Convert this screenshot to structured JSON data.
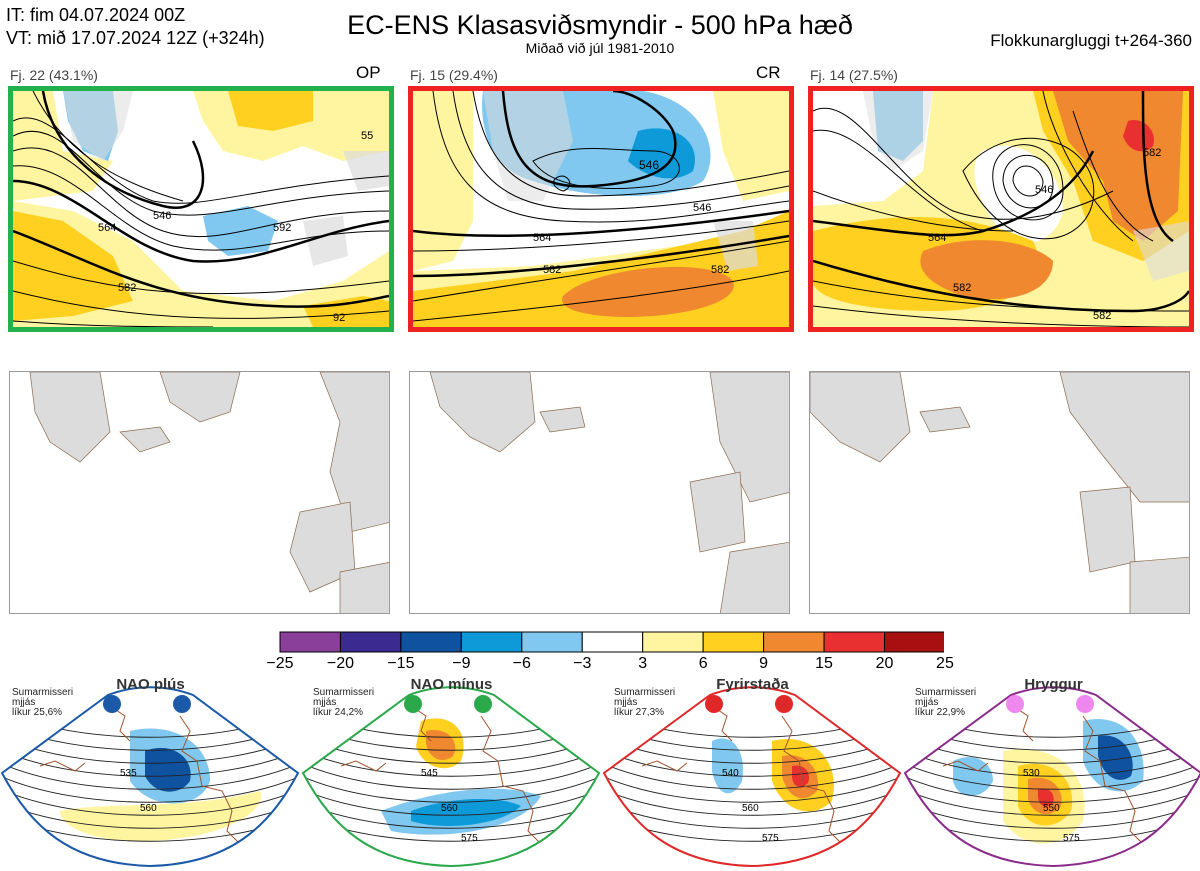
{
  "header": {
    "it_line": "IT: fim 04.07.2024 00Z",
    "vt_line": "VT: mið 17.07.2024 12Z  (+324h)",
    "title": "EC-ENS Klasasviðsmyndir - 500 hPa hæð",
    "subtitle": "Miðað við júl 1981-2010",
    "window": "Flokkunarglugg i t+264-360"
  },
  "panels": [
    {
      "label": "Fj. 22 (43.1%)",
      "tag": "OP",
      "border": "#22b14c",
      "contours": [
        "564",
        "546",
        "582",
        "55",
        "592",
        "92"
      ]
    },
    {
      "label": "Fj. 15 (29.4%)",
      "tag": "CR",
      "border": "#ee2222",
      "contours": [
        "546",
        "564",
        "582",
        "546",
        "582"
      ]
    },
    {
      "label": "Fj. 14 (27.5%)",
      "tag": "",
      "border": "#ee2222",
      "contours": [
        "564",
        "546",
        "582",
        "582",
        "582"
      ]
    }
  ],
  "colorbar": {
    "ticks": [
      "−25",
      "−20",
      "−15",
      "−9",
      "−6",
      "−3",
      "3",
      "6",
      "9",
      "15",
      "20",
      "25"
    ],
    "colors": [
      "#8a3f9a",
      "#3b2a8f",
      "#0f52a0",
      "#0e9ad8",
      "#80c8ef",
      "#ffffff",
      "#fff5a0",
      "#ffd020",
      "#f08830",
      "#e83030",
      "#a80f10"
    ]
  },
  "regimes": [
    {
      "name": "NAO plús",
      "info": [
        "Sumarmisseri",
        "mjjás",
        "líkur 25,6%"
      ],
      "color": "#1a5aa8",
      "dots": "#1a5aa8",
      "contours": [
        "535",
        "560"
      ]
    },
    {
      "name": "NAO mínus",
      "info": [
        "Sumarmisseri",
        "mjjás",
        "líkur 24,2%"
      ],
      "color": "#2aa84a",
      "dots": "#2aa84a",
      "contours": [
        "545",
        "560",
        "575"
      ]
    },
    {
      "name": "Fyrirstaða",
      "info": [
        "Sumarmisseri",
        "mjjás",
        "líkur 27,3%"
      ],
      "color": "#e02828",
      "dots": "#e02828",
      "contours": [
        "540",
        "560",
        "575"
      ]
    },
    {
      "name": "Hryggur",
      "info": [
        "Sumarmisseri",
        "mjjás",
        "líkur 22,9%"
      ],
      "color": "#8a2a8a",
      "dots": "#ee88ee",
      "contours": [
        "530",
        "550",
        "575"
      ]
    }
  ]
}
